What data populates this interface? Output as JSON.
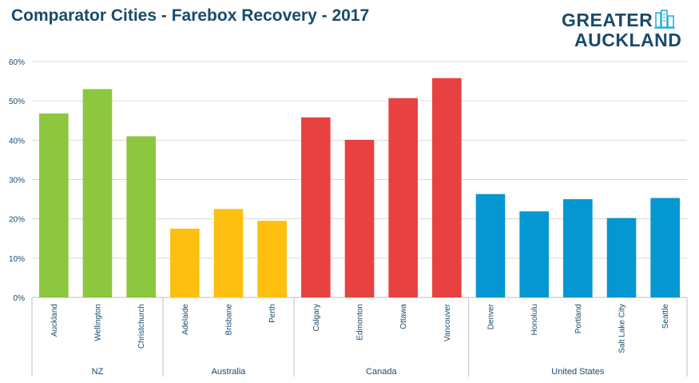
{
  "header": {
    "title": "Comparator Cities - Farebox Recovery - 2017",
    "logo_line1": "GREATER",
    "logo_line2": "AUCKLAND"
  },
  "chart_data": {
    "type": "bar",
    "title": "Comparator Cities - Farebox Recovery - 2017",
    "y_tick_labels": [
      "0%",
      "10%",
      "20%",
      "30%",
      "40%",
      "50%",
      "60%"
    ],
    "ylim": [
      0,
      60
    ],
    "grid": true,
    "colors": {
      "NZ": "#8dc63f",
      "Australia": "#fdc010",
      "Canada": "#e84142",
      "United States": "#0597d2",
      "text": "#1a4a6b",
      "grid": "#d9d9d9"
    },
    "groups": [
      {
        "name": "NZ",
        "categories": [
          "Auckland",
          "Wellington",
          "Christchurch"
        ],
        "values": [
          46.8,
          53.0,
          41.0
        ]
      },
      {
        "name": "Australia",
        "categories": [
          "Adelaide",
          "Brisbane",
          "Perth"
        ],
        "values": [
          17.5,
          22.5,
          19.5
        ]
      },
      {
        "name": "Canada",
        "categories": [
          "Calgary",
          "Edmonton",
          "Ottawa",
          "Vancouver"
        ],
        "values": [
          45.8,
          40.1,
          50.7,
          55.8
        ]
      },
      {
        "name": "United States",
        "categories": [
          "Denver",
          "Honolulu",
          "Portland",
          "Salt Lake City",
          "Seattle"
        ],
        "values": [
          26.3,
          21.9,
          25.0,
          20.2,
          25.3
        ]
      }
    ]
  }
}
